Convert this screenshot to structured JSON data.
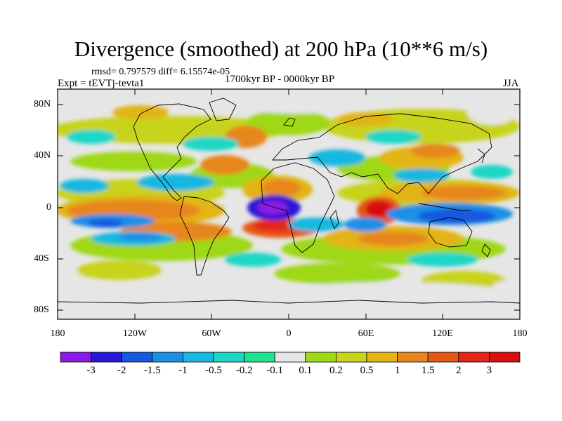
{
  "title": "Divergence (smoothed) at 200 hPa (10**6 m/s)",
  "stats": "rmsd= 0.797579  diff= 6.15574e-05",
  "experiment": "Expt = tEVTj-tevta1",
  "period": "1700kyr BP - 0000kyr BP",
  "season": "JJA",
  "lat_labels": [
    "80N",
    "40N",
    "0",
    "40S",
    "80S"
  ],
  "lon_labels": [
    "180",
    "120W",
    "60W",
    "0",
    "60E",
    "120E",
    "180"
  ],
  "colorbar": {
    "labels": [
      "-3",
      "-2",
      "-1.5",
      "-1",
      "-0.5",
      "-0.2",
      "-0.1",
      "0.1",
      "0.2",
      "0.5",
      "1",
      "1.5",
      "2",
      "3"
    ],
    "colors": [
      "#8a1ae6",
      "#2a18d8",
      "#1559e0",
      "#1a8fe6",
      "#17b7e0",
      "#1fd6c6",
      "#21e28c",
      "#e6e6e6",
      "#9ed817",
      "#c8d31c",
      "#e2b414",
      "#e7861d",
      "#e45817",
      "#e3251a",
      "#d70f0f"
    ]
  }
}
